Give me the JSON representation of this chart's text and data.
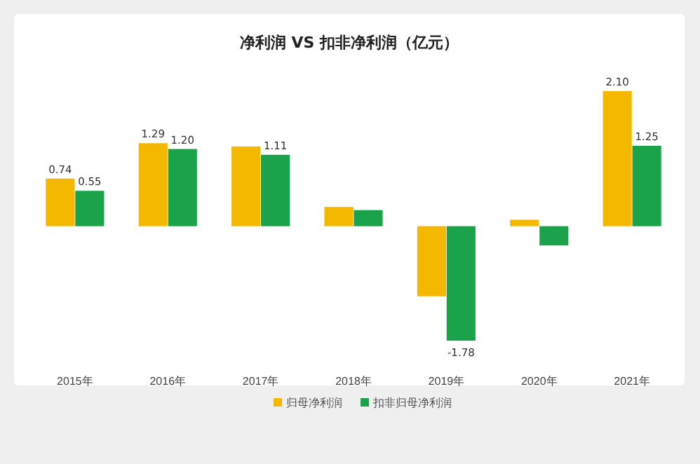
{
  "chart_data": {
    "type": "bar",
    "title": "净利润  VS  扣非净利润（亿元）",
    "categories": [
      "2015年",
      "2016年",
      "2017年",
      "2018年",
      "2019年",
      "2020年",
      "2021年"
    ],
    "series": [
      {
        "name": "归母净利润",
        "color": "#f5b800",
        "values": [
          0.74,
          1.29,
          1.24,
          0.3,
          -1.09,
          0.1,
          2.1
        ],
        "value_labels": [
          "0.74",
          "1.29",
          null,
          null,
          null,
          null,
          "2.10"
        ]
      },
      {
        "name": "扣非归母净利润",
        "color": "#1aa34a",
        "values": [
          0.55,
          1.2,
          1.11,
          0.25,
          -1.78,
          -0.3,
          1.25
        ],
        "value_labels": [
          "0.55",
          "1.20",
          "1.11",
          null,
          "-1.78",
          null,
          "1.25"
        ]
      }
    ],
    "tick_labels": "x",
    "legend": "bottom"
  }
}
